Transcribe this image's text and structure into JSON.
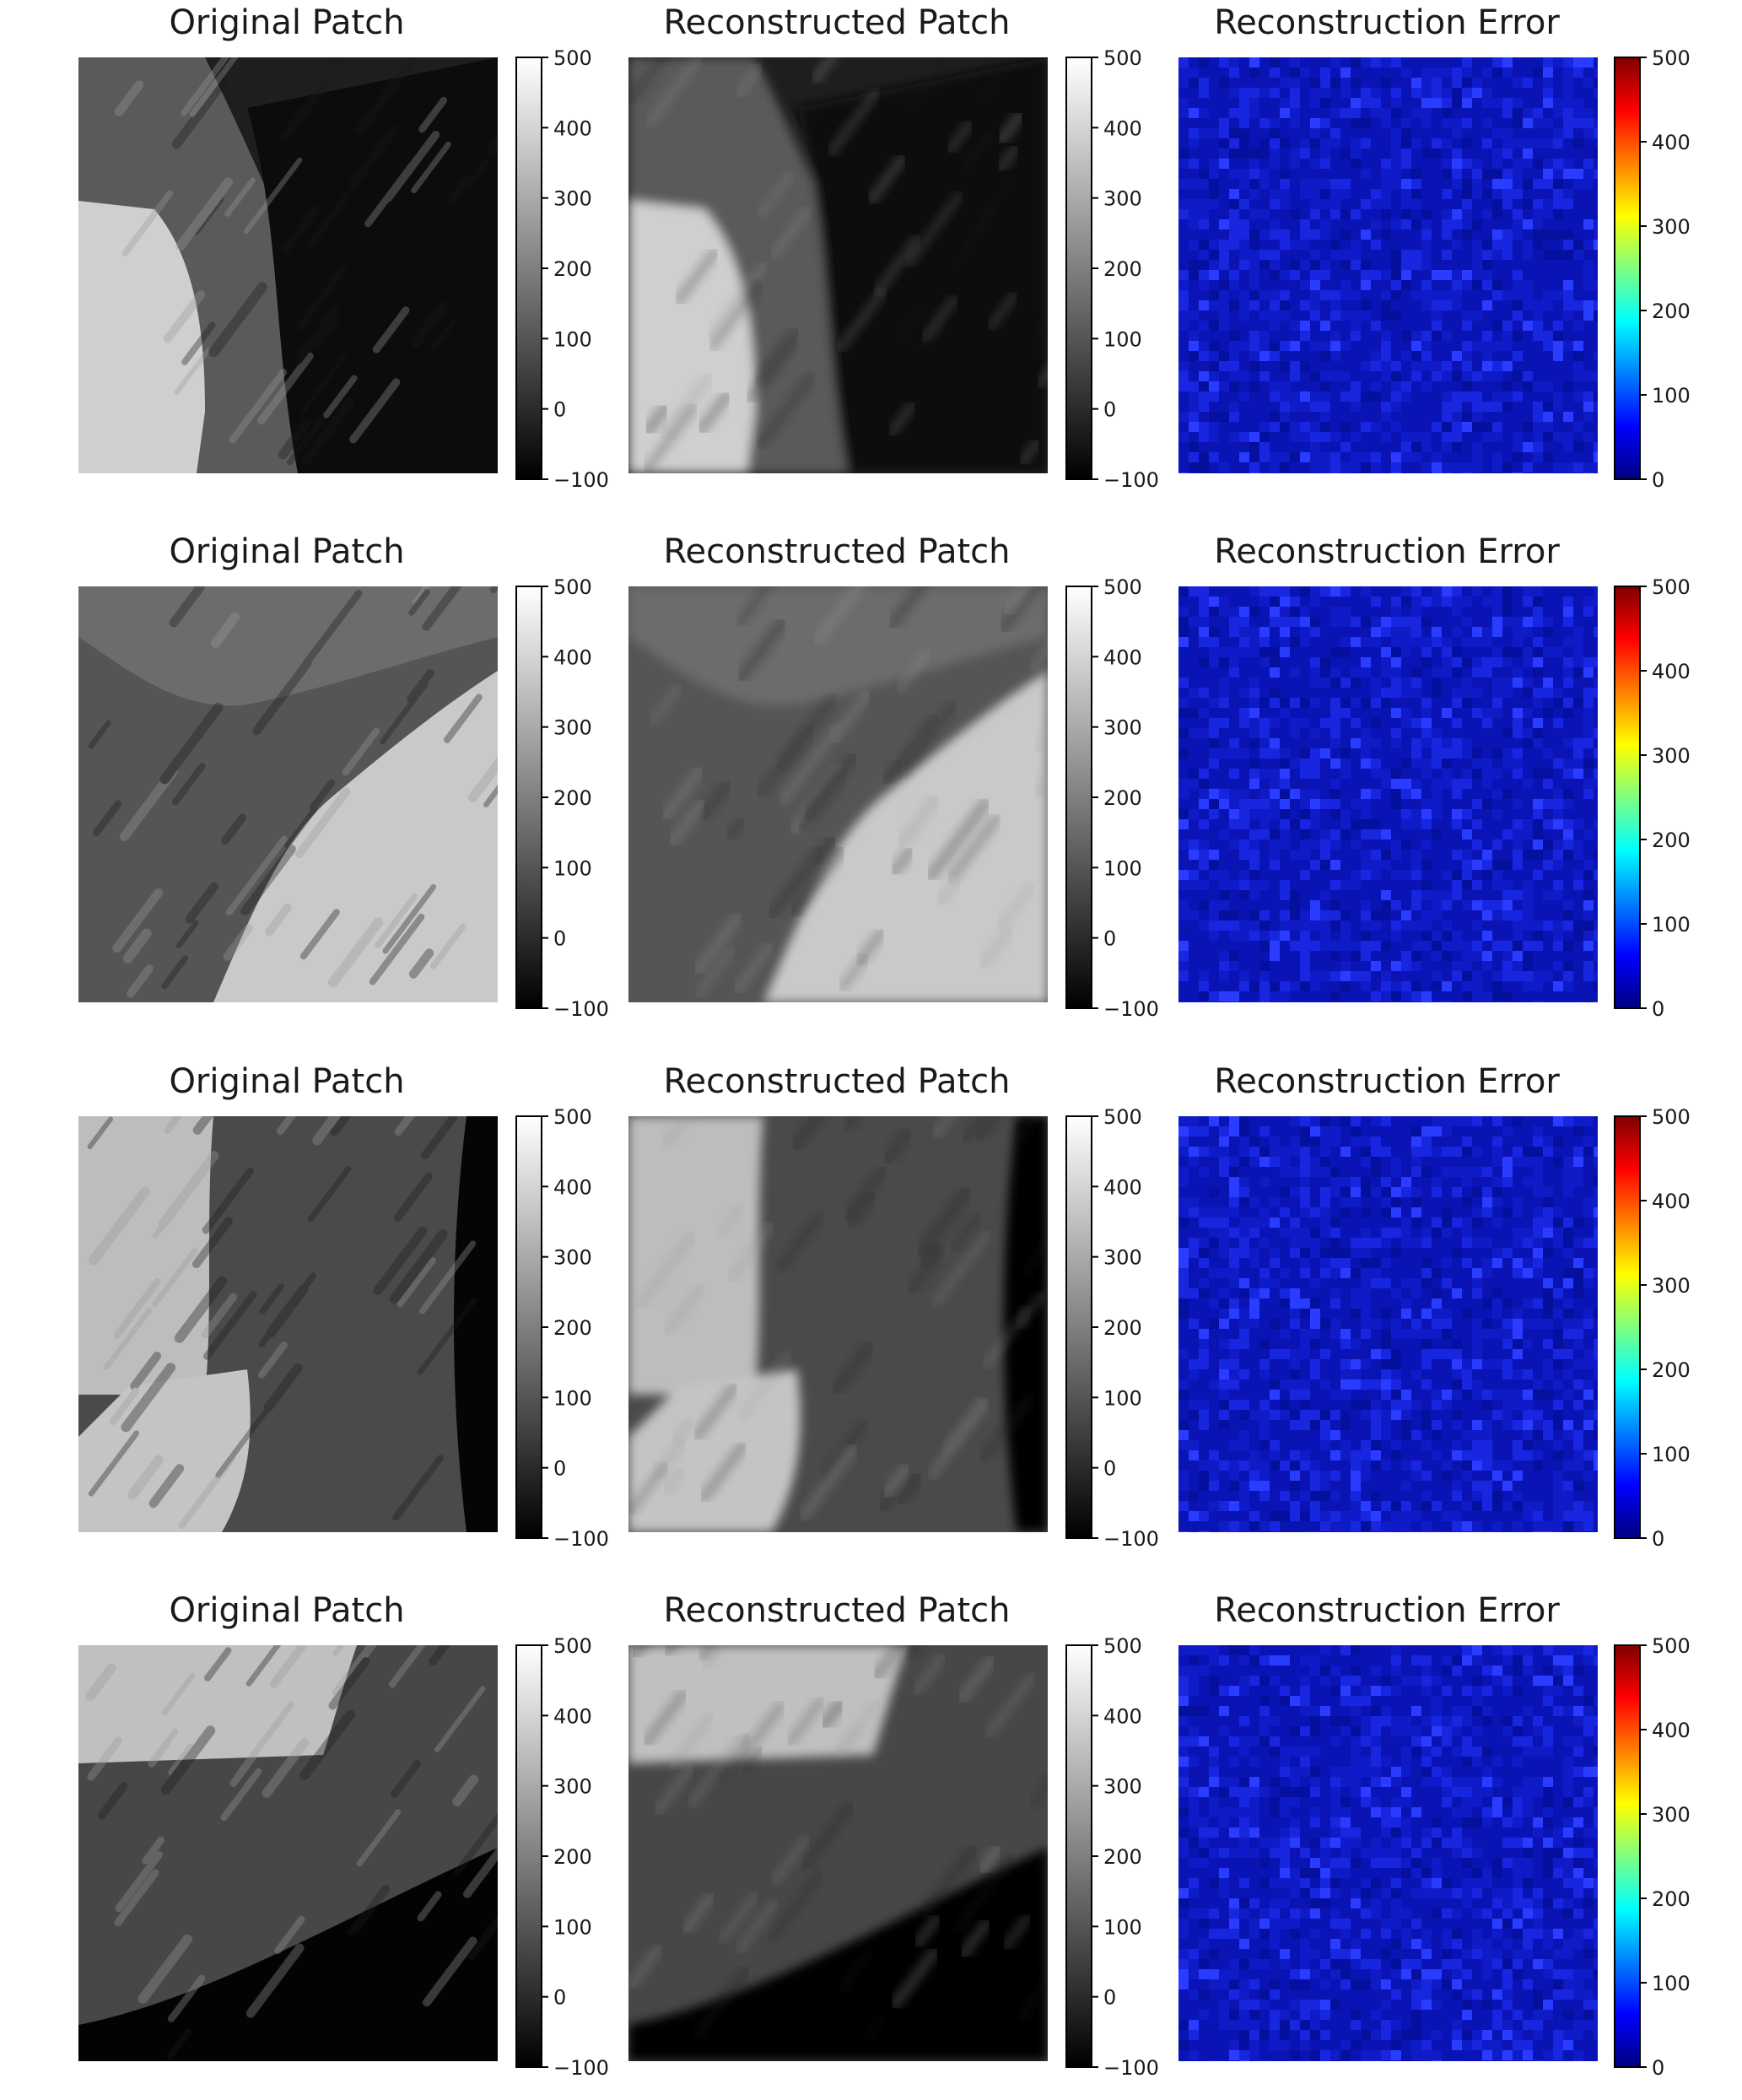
{
  "figure": {
    "rows": [
      {
        "panels": [
          {
            "title": "Original Patch",
            "colormap": "gray",
            "colorbar_ticks": [
              "500",
              "400",
              "300",
              "200",
              "100",
              "0",
              "−100"
            ]
          },
          {
            "title": "Reconstructed Patch",
            "colormap": "gray",
            "colorbar_ticks": [
              "500",
              "400",
              "300",
              "200",
              "100",
              "0",
              "−100"
            ]
          },
          {
            "title": "Reconstruction Error",
            "colormap": "jet",
            "colorbar_ticks": [
              "500",
              "400",
              "300",
              "200",
              "100",
              "0"
            ]
          }
        ]
      },
      {
        "panels": [
          {
            "title": "Original Patch",
            "colormap": "gray",
            "colorbar_ticks": [
              "500",
              "400",
              "300",
              "200",
              "100",
              "0",
              "−100"
            ]
          },
          {
            "title": "Reconstructed Patch",
            "colormap": "gray",
            "colorbar_ticks": [
              "500",
              "400",
              "300",
              "200",
              "100",
              "0",
              "−100"
            ]
          },
          {
            "title": "Reconstruction Error",
            "colormap": "jet",
            "colorbar_ticks": [
              "500",
              "400",
              "300",
              "200",
              "100",
              "0"
            ]
          }
        ]
      },
      {
        "panels": [
          {
            "title": "Original Patch",
            "colormap": "gray",
            "colorbar_ticks": [
              "500",
              "400",
              "300",
              "200",
              "100",
              "0",
              "−100"
            ]
          },
          {
            "title": "Reconstructed Patch",
            "colormap": "gray",
            "colorbar_ticks": [
              "500",
              "400",
              "300",
              "200",
              "100",
              "0",
              "−100"
            ]
          },
          {
            "title": "Reconstruction Error",
            "colormap": "jet",
            "colorbar_ticks": [
              "500",
              "400",
              "300",
              "200",
              "100",
              "0"
            ]
          }
        ]
      },
      {
        "panels": [
          {
            "title": "Original Patch",
            "colormap": "gray",
            "colorbar_ticks": [
              "500",
              "400",
              "300",
              "200",
              "100",
              "0",
              "−100"
            ]
          },
          {
            "title": "Reconstructed Patch",
            "colormap": "gray",
            "colorbar_ticks": [
              "500",
              "400",
              "300",
              "200",
              "100",
              "0",
              "−100"
            ]
          },
          {
            "title": "Reconstruction Error",
            "colormap": "jet",
            "colorbar_ticks": [
              "500",
              "400",
              "300",
              "200",
              "100",
              "0"
            ]
          }
        ]
      }
    ],
    "colors": {
      "background": "#ffffff",
      "error_base": "#0a14b4",
      "text": "#1a1a1a"
    }
  }
}
